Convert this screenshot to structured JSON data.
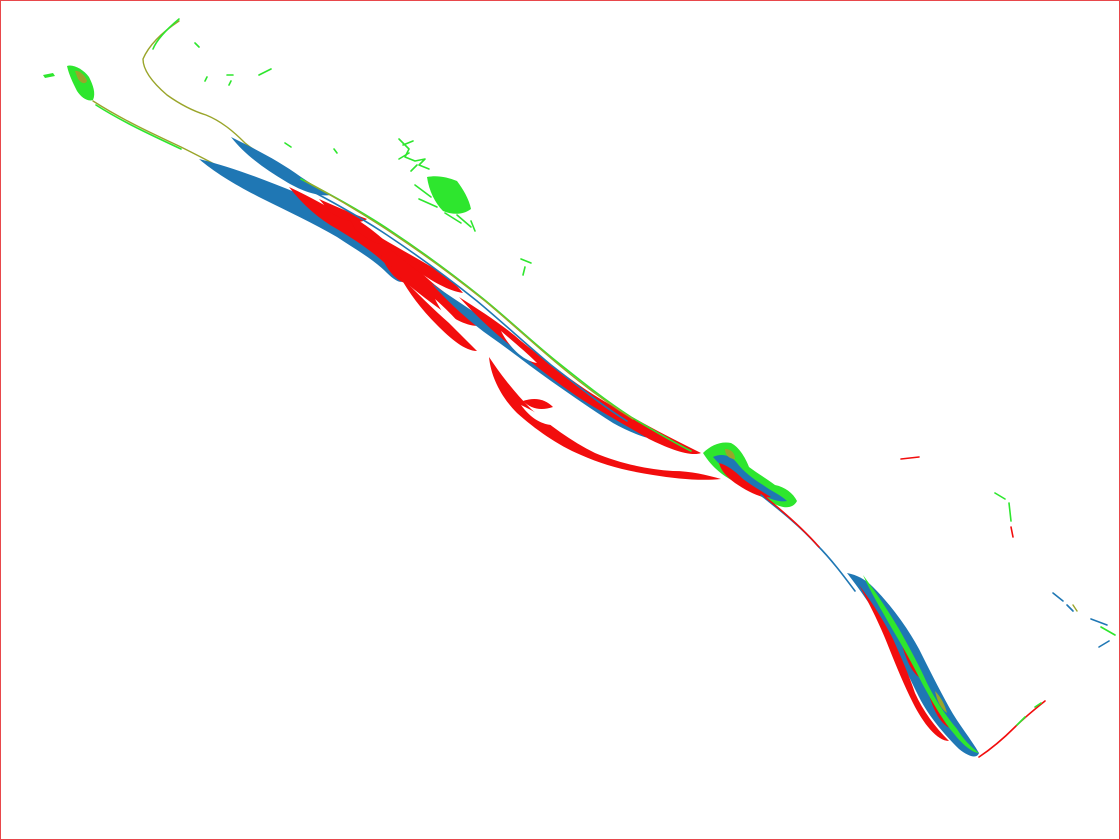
{
  "map": {
    "background": "#ffffff",
    "frame_color": "#e8474b",
    "classes": [
      {
        "key": "red",
        "color": "#f20d0d"
      },
      {
        "key": "blue",
        "color": "#1f77b4"
      },
      {
        "key": "green",
        "color": "#2ee62e"
      },
      {
        "key": "olive",
        "color": "#9aa52a"
      }
    ]
  }
}
